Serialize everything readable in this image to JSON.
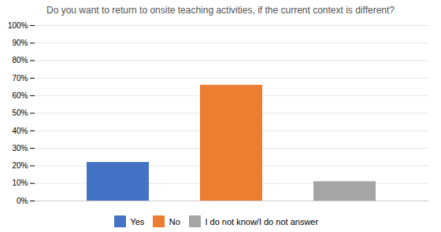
{
  "chart_data": {
    "type": "bar",
    "title": "Do you want to return to onsite teaching activities, if the current context is different?",
    "categories": [
      "Yes",
      "No",
      "I do not know/I do not answer"
    ],
    "values": [
      22,
      66,
      11
    ],
    "colors": [
      "#4472C4",
      "#ED7D31",
      "#A5A5A5"
    ],
    "ylim": [
      0,
      100
    ],
    "yticks": [
      {
        "value": 0,
        "label": "0%"
      },
      {
        "value": 10,
        "label": "10%"
      },
      {
        "value": 20,
        "label": "20%"
      },
      {
        "value": 30,
        "label": "30%"
      },
      {
        "value": 40,
        "label": "40%"
      },
      {
        "value": 50,
        "label": "50%"
      },
      {
        "value": 60,
        "label": "60%"
      },
      {
        "value": 70,
        "label": "70%"
      },
      {
        "value": 80,
        "label": "80%"
      },
      {
        "value": 90,
        "label": "90%"
      },
      {
        "value": 100,
        "label": "100%"
      }
    ],
    "grid": true,
    "legend": "bottom",
    "tick_labels": "y"
  }
}
